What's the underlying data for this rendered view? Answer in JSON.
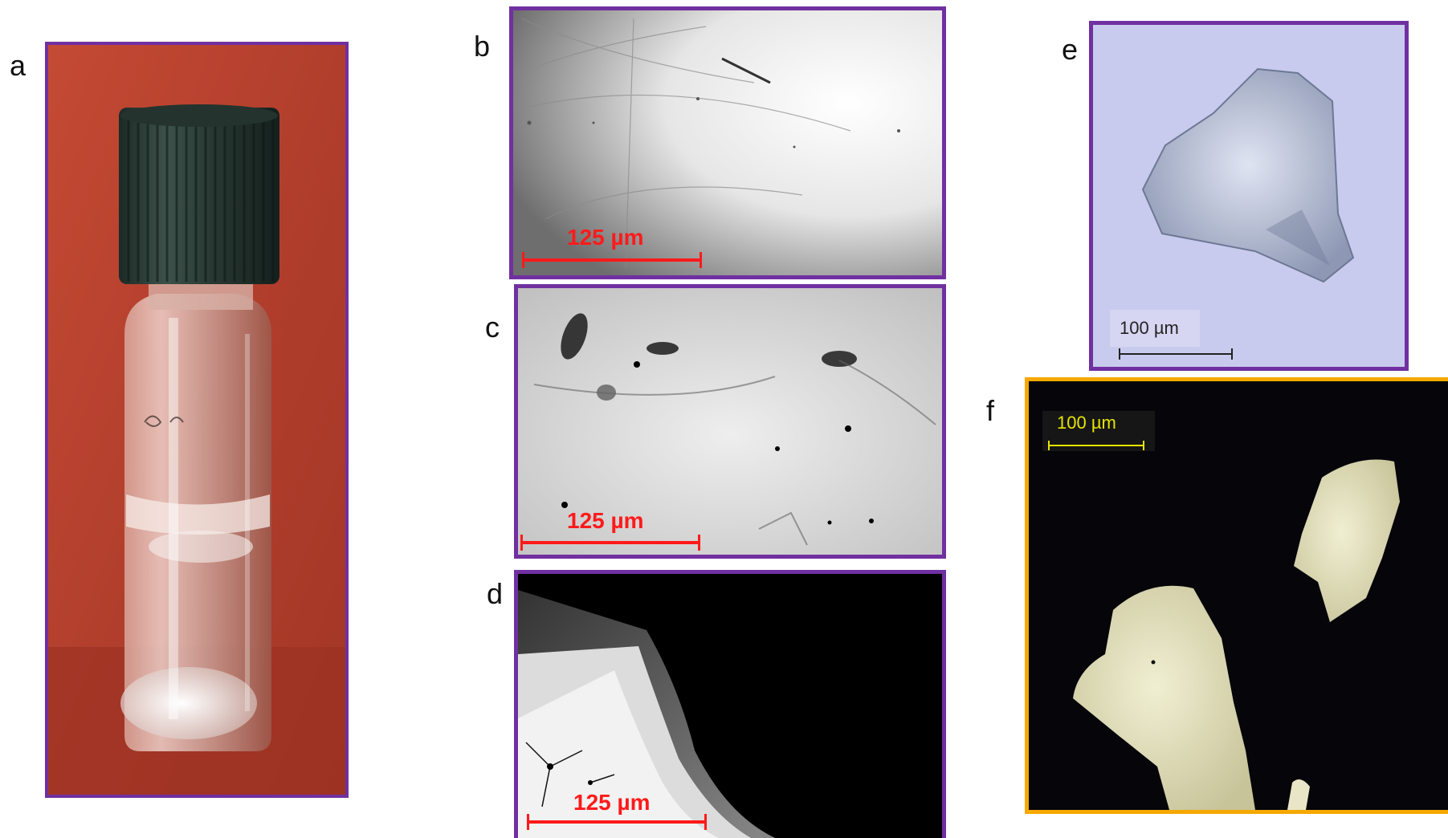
{
  "panels": {
    "a": {
      "letter": "a"
    },
    "b": {
      "letter": "b",
      "scale_label": "125 µm"
    },
    "c": {
      "letter": "c",
      "scale_label": "125 µm"
    },
    "d": {
      "letter": "d",
      "scale_label": "125 µm"
    },
    "e": {
      "letter": "e",
      "scale_label": "100 µm"
    },
    "f": {
      "letter": "f",
      "scale_label": "100 µm"
    }
  },
  "colors": {
    "frame_purple": "#7030a0",
    "frame_orange": "#f5a800",
    "scale_red": "#ff1a1a",
    "scale_yellow": "#e6e600",
    "scale_dark": "#222222"
  }
}
